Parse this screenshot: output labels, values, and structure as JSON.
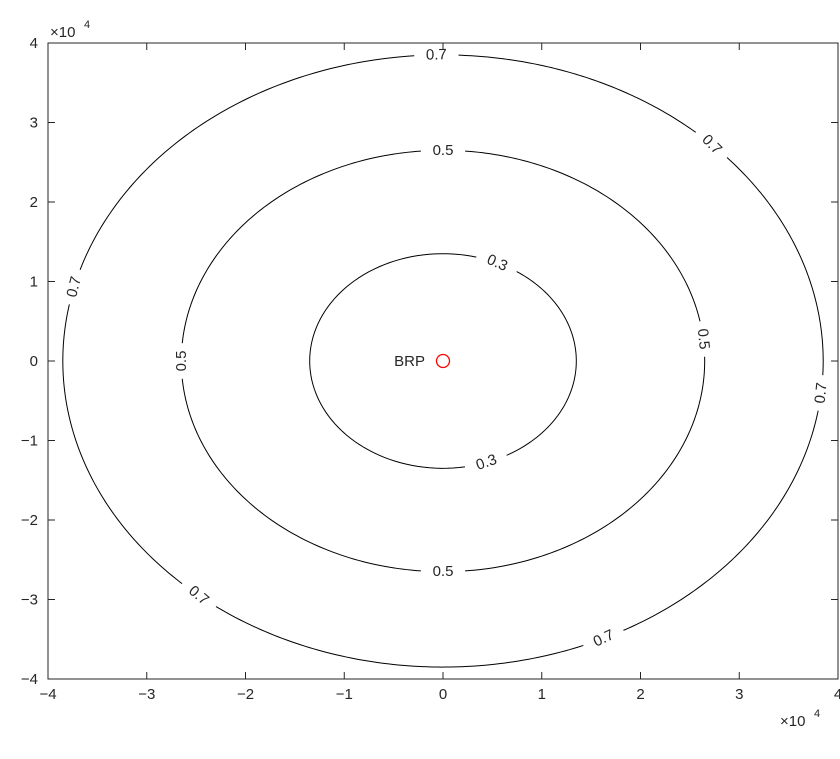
{
  "chart_data": {
    "type": "contour",
    "title": "",
    "xlabel": "",
    "ylabel": "",
    "xlim": [
      -4,
      4
    ],
    "ylim": [
      -4,
      4
    ],
    "axis_multiplier": {
      "base": "×10",
      "power": "4"
    },
    "x_ticks": [
      -4,
      -3,
      -2,
      -1,
      0,
      1,
      2,
      3,
      4
    ],
    "y_ticks": [
      -4,
      -3,
      -2,
      -1,
      0,
      1,
      2,
      3,
      4
    ],
    "grid": false,
    "line_color": "#000000",
    "marker_color": "#ff0000",
    "contours": [
      {
        "level": 0.3,
        "center": [
          0.0,
          0.0
        ],
        "rx": 1.35,
        "ry": 1.35,
        "labels": [
          {
            "text": "0.3",
            "angle_deg": 66
          },
          {
            "text": "0.3",
            "angle_deg": -71
          }
        ]
      },
      {
        "level": 0.5,
        "center": [
          0.0,
          0.0
        ],
        "rx": 2.65,
        "ry": 2.65,
        "labels": [
          {
            "text": "0.5",
            "angle_deg": 90
          },
          {
            "text": "0.5",
            "angle_deg": 180
          },
          {
            "text": "0.5",
            "angle_deg": -90
          },
          {
            "text": "0.5",
            "angle_deg": 6
          }
        ]
      },
      {
        "level": 0.7,
        "center": [
          0.0,
          0.0
        ],
        "rx": 3.85,
        "ry": 3.85,
        "labels": [
          {
            "text": "0.7",
            "angle_deg": 91
          },
          {
            "text": "0.7",
            "angle_deg": 45
          },
          {
            "text": "0.7",
            "angle_deg": 166
          },
          {
            "text": "0.7",
            "angle_deg": -6
          },
          {
            "text": "0.7",
            "angle_deg": -130
          },
          {
            "text": "0.7",
            "angle_deg": -65
          }
        ]
      }
    ],
    "markers": [
      {
        "x": 0,
        "y": 0,
        "symbol": "circle",
        "label": "BRP"
      }
    ]
  }
}
